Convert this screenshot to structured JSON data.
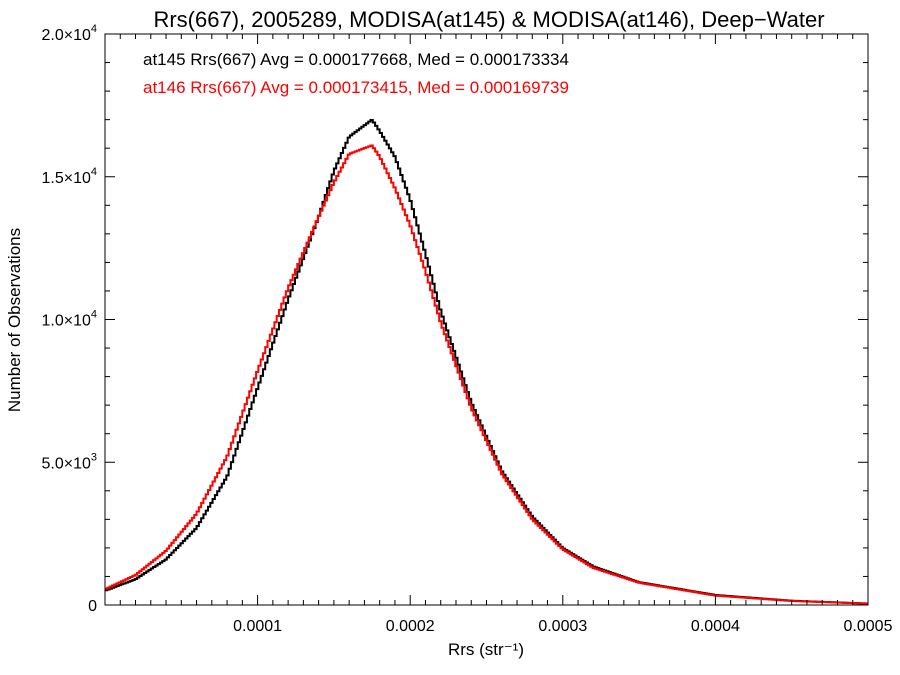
{
  "chart_data": {
    "type": "line",
    "title": "Rrs(667), 2005289, MODISA(at145) & MODISA(at146), Deep−Water",
    "xlabel": "Rrs (str⁻¹)",
    "ylabel": "Number of Observations",
    "xlim": [
      0,
      0.0005
    ],
    "ylim": [
      0,
      20000
    ],
    "grid": false,
    "x_ticks": [
      0.0001,
      0.0002,
      0.0003,
      0.0004,
      0.0005
    ],
    "x_tick_labels": [
      "0.0001",
      "0.0002",
      "0.0003",
      "0.0004",
      "0.0005"
    ],
    "y_ticks": [
      0,
      5000,
      10000,
      15000,
      20000
    ],
    "y_tick_labels": [
      {
        "mantissa": "0",
        "exp": ""
      },
      {
        "mantissa": "5.0×10",
        "exp": "3"
      },
      {
        "mantissa": "1.0×10",
        "exp": "4"
      },
      {
        "mantissa": "1.5×10",
        "exp": "4"
      },
      {
        "mantissa": "2.0×10",
        "exp": "4"
      }
    ],
    "annotations": [
      "at145 Rrs(667) Avg = 0.000177668, Med = 0.000173334",
      "at146 Rrs(667) Avg = 0.000173415, Med = 0.000169739"
    ],
    "series": [
      {
        "color": "#000000",
        "x": [
          0.0,
          2e-05,
          4e-05,
          6e-05,
          8e-05,
          0.0001,
          0.00012,
          0.00014,
          0.00015,
          0.00016,
          0.00017,
          0.000175,
          0.00018,
          0.00019,
          0.0002,
          0.00021,
          0.00022,
          0.00024,
          0.00026,
          0.00028,
          0.0003,
          0.00032,
          0.00035,
          0.0004,
          0.00045,
          0.0005
        ],
        "y": [
          500,
          900,
          1600,
          2700,
          4500,
          7600,
          10700,
          13600,
          15200,
          16400,
          16800,
          17000,
          16600,
          15700,
          14200,
          12300,
          10300,
          7100,
          4700,
          3100,
          2000,
          1350,
          800,
          350,
          150,
          50
        ]
      },
      {
        "color": "#ff0000",
        "x": [
          0.0,
          2e-05,
          4e-05,
          6e-05,
          8e-05,
          0.0001,
          0.00012,
          0.00014,
          0.00015,
          0.00016,
          0.00017,
          0.000175,
          0.00018,
          0.00019,
          0.0002,
          0.00021,
          0.00022,
          0.00024,
          0.00026,
          0.00028,
          0.0003,
          0.00032,
          0.00035,
          0.0004,
          0.00045,
          0.0005
        ],
        "y": [
          550,
          1050,
          1900,
          3200,
          5200,
          8200,
          11100,
          13600,
          14800,
          15800,
          16000,
          16100,
          15700,
          14600,
          13300,
          11700,
          9900,
          6900,
          4600,
          3000,
          1950,
          1300,
          780,
          330,
          140,
          50
        ]
      }
    ]
  },
  "colors": {
    "series_1": "#000000",
    "series_2": "#ff0000",
    "axes": "#000000",
    "background": "#ffffff"
  }
}
